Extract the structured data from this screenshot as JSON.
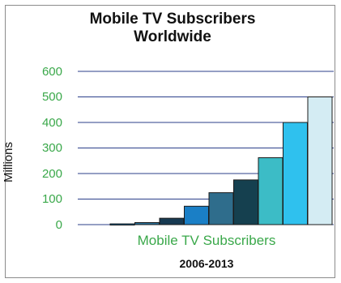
{
  "chart_data": {
    "type": "bar",
    "title": "Mobile TV Subscribers Worldwide",
    "title_lines": [
      "Mobile TV Subscribers",
      "Worldwide"
    ],
    "xlabel": "Mobile TV Subscribers",
    "ylabel": "Millions",
    "note": "2006-2013",
    "ylim": [
      0,
      600
    ],
    "yticks": [
      0,
      100,
      200,
      300,
      400,
      500,
      600
    ],
    "values": [
      3,
      8,
      25,
      72,
      125,
      175,
      262,
      400,
      500
    ],
    "colors": [
      "#0d6aa8",
      "#2a6e94",
      "#173a52",
      "#1a7fc6",
      "#2f6d8c",
      "#15404f",
      "#3cbcc6",
      "#2fc1ee",
      "#d4ecf3"
    ],
    "grid": true
  }
}
